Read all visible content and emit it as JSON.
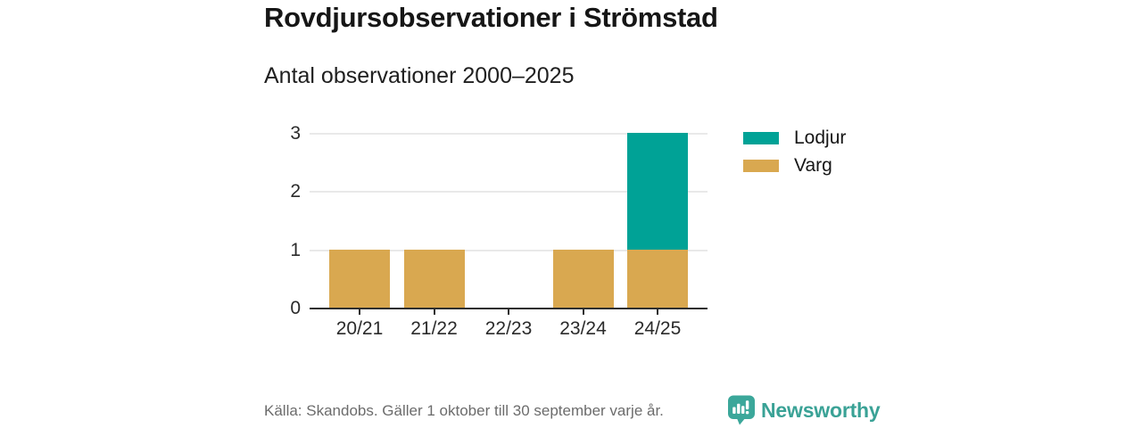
{
  "header": {
    "title": "Rovdjursobservationer i Strömstad",
    "subtitle": "Antal observationer 2000–2025"
  },
  "chart_data": {
    "type": "bar",
    "stacked": true,
    "title": "Rovdjursobservationer i Strömstad",
    "subtitle": "Antal observationer 2000–2025",
    "categories": [
      "20/21",
      "21/22",
      "22/23",
      "23/24",
      "24/25"
    ],
    "series": [
      {
        "name": "Varg",
        "color": "#d9a850",
        "values": [
          1,
          1,
          0,
          1,
          1
        ]
      },
      {
        "name": "Lodjur",
        "color": "#00a296",
        "values": [
          0,
          0,
          0,
          0,
          2
        ]
      }
    ],
    "legend": [
      {
        "label": "Lodjur",
        "color": "#00a296"
      },
      {
        "label": "Varg",
        "color": "#d9a850"
      }
    ],
    "xlabel": "",
    "ylabel": "",
    "y_ticks": [
      0,
      1,
      2,
      3
    ],
    "ylim": [
      0,
      3
    ],
    "grid": true,
    "legend_position": "right"
  },
  "colors": {
    "lodjur": "#00a296",
    "varg": "#d9a850",
    "gridline": "#e9e9e9",
    "axis": "#2e2e2e",
    "brand_teal": "#3aa296"
  },
  "footer": {
    "source": "Källa: Skandobs. Gäller 1 oktober till 30 september varje år.",
    "brand": "Newsworthy"
  },
  "icons": {
    "brand_logo": "newsworthy-speech-bubble-chart-icon"
  }
}
